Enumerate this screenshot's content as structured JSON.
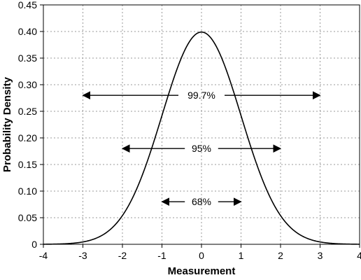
{
  "chart_data": {
    "type": "line",
    "title": "",
    "xlabel": "Measurement",
    "ylabel": "Probability Density",
    "xlim": [
      -4,
      4
    ],
    "ylim": [
      0,
      0.45
    ],
    "x_ticks": [
      "-4",
      "-3",
      "-2",
      "-1",
      "0",
      "1",
      "2",
      "3",
      "4"
    ],
    "y_ticks": [
      "0",
      "0.05",
      "0.10",
      "0.15",
      "0.20",
      "0.25",
      "0.30",
      "0.35",
      "0.40",
      "0.45"
    ],
    "grid": true,
    "curve": {
      "distribution": "standard normal",
      "mean": 0,
      "sd": 1,
      "peak": 0.4,
      "x": [
        -4,
        -3.5,
        -3,
        -2.5,
        -2,
        -1.5,
        -1,
        -0.5,
        0,
        0.5,
        1,
        1.5,
        2,
        2.5,
        3,
        3.5,
        4
      ],
      "y": [
        0.0001,
        0.0009,
        0.0044,
        0.0175,
        0.054,
        0.1295,
        0.242,
        0.3521,
        0.3989,
        0.3521,
        0.242,
        0.1295,
        0.054,
        0.0175,
        0.0044,
        0.0009,
        0.0001
      ]
    },
    "annotations": [
      {
        "label": "99.7%",
        "x_start": -3,
        "x_end": 3,
        "y": 0.28
      },
      {
        "label": "95%",
        "x_start": -2,
        "x_end": 2,
        "y": 0.18
      },
      {
        "label": "68%",
        "x_start": -1,
        "x_end": 1,
        "y": 0.08
      }
    ],
    "colors": {
      "line": "#000000",
      "grid": "#999999",
      "background": "#ffffff"
    }
  }
}
